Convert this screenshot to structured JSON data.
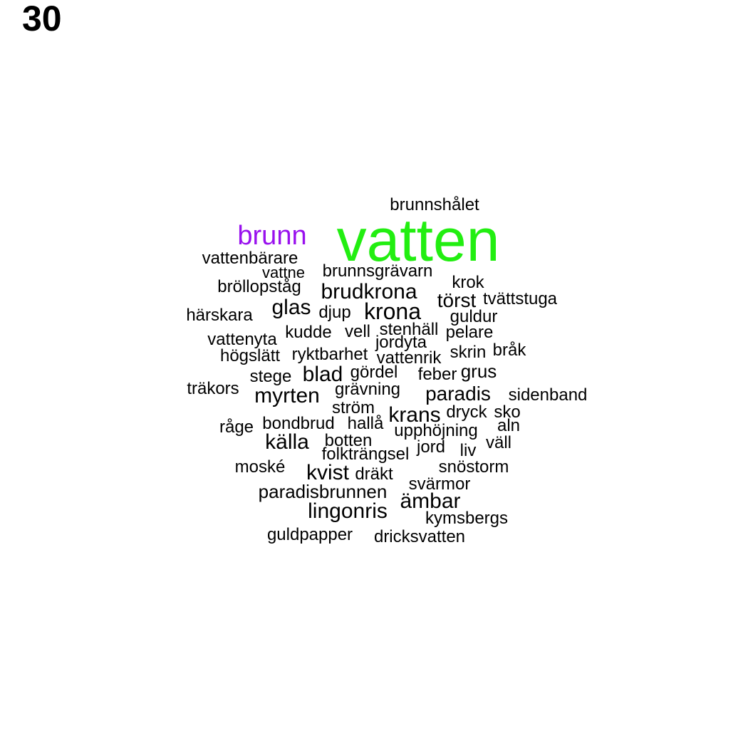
{
  "page_number": "30",
  "colors": {
    "highlight_primary": "#22ee11",
    "highlight_secondary": "#9911ee",
    "default": "#000000"
  },
  "words": [
    {
      "text": "vatten",
      "weight": 10,
      "color": "#22ee11"
    },
    {
      "text": "brunn",
      "weight": 4,
      "color": "#9911ee"
    },
    {
      "text": "brunnshålet",
      "weight": 1
    },
    {
      "text": "vattenbärare",
      "weight": 1
    },
    {
      "text": "vattne",
      "weight": 1
    },
    {
      "text": "brunnsgrävarn",
      "weight": 1
    },
    {
      "text": "krok",
      "weight": 1
    },
    {
      "text": "bröllopståg",
      "weight": 1
    },
    {
      "text": "brudkrona",
      "weight": 2
    },
    {
      "text": "törst",
      "weight": 2
    },
    {
      "text": "tvättstuga",
      "weight": 1
    },
    {
      "text": "härskara",
      "weight": 1
    },
    {
      "text": "glas",
      "weight": 2
    },
    {
      "text": "djup",
      "weight": 1
    },
    {
      "text": "krona",
      "weight": 2
    },
    {
      "text": "guldur",
      "weight": 1
    },
    {
      "text": "kudde",
      "weight": 1
    },
    {
      "text": "vell",
      "weight": 1
    },
    {
      "text": "stenhäll",
      "weight": 1
    },
    {
      "text": "pelare",
      "weight": 1
    },
    {
      "text": "vattenyta",
      "weight": 1
    },
    {
      "text": "jordyta",
      "weight": 1
    },
    {
      "text": "skrin",
      "weight": 1
    },
    {
      "text": "bråk",
      "weight": 1
    },
    {
      "text": "högslätt",
      "weight": 1
    },
    {
      "text": "ryktbarhet",
      "weight": 1
    },
    {
      "text": "vattenrik",
      "weight": 1
    },
    {
      "text": "stege",
      "weight": 1
    },
    {
      "text": "blad",
      "weight": 2
    },
    {
      "text": "gördel",
      "weight": 1
    },
    {
      "text": "feber",
      "weight": 1
    },
    {
      "text": "grus",
      "weight": 1
    },
    {
      "text": "träkors",
      "weight": 1
    },
    {
      "text": "myrten",
      "weight": 2
    },
    {
      "text": "grävning",
      "weight": 1
    },
    {
      "text": "paradis",
      "weight": 2
    },
    {
      "text": "sidenband",
      "weight": 1
    },
    {
      "text": "ström",
      "weight": 1
    },
    {
      "text": "krans",
      "weight": 2
    },
    {
      "text": "dryck",
      "weight": 1
    },
    {
      "text": "sko",
      "weight": 1
    },
    {
      "text": "råge",
      "weight": 1
    },
    {
      "text": "bondbrud",
      "weight": 1
    },
    {
      "text": "hallå",
      "weight": 1
    },
    {
      "text": "upphöjning",
      "weight": 1
    },
    {
      "text": "aln",
      "weight": 1
    },
    {
      "text": "källa",
      "weight": 2
    },
    {
      "text": "botten",
      "weight": 1
    },
    {
      "text": "jord",
      "weight": 1
    },
    {
      "text": "väll",
      "weight": 1
    },
    {
      "text": "folkträngsel",
      "weight": 1
    },
    {
      "text": "liv",
      "weight": 1
    },
    {
      "text": "moské",
      "weight": 1
    },
    {
      "text": "kvist",
      "weight": 2
    },
    {
      "text": "dräkt",
      "weight": 1
    },
    {
      "text": "snöstorm",
      "weight": 1
    },
    {
      "text": "svärmor",
      "weight": 1
    },
    {
      "text": "paradisbrunnen",
      "weight": 1
    },
    {
      "text": "ämbar",
      "weight": 2
    },
    {
      "text": "lingonris",
      "weight": 2
    },
    {
      "text": "kymsbergs",
      "weight": 1
    },
    {
      "text": "guldpapper",
      "weight": 1
    },
    {
      "text": "dricksvatten",
      "weight": 1
    }
  ]
}
